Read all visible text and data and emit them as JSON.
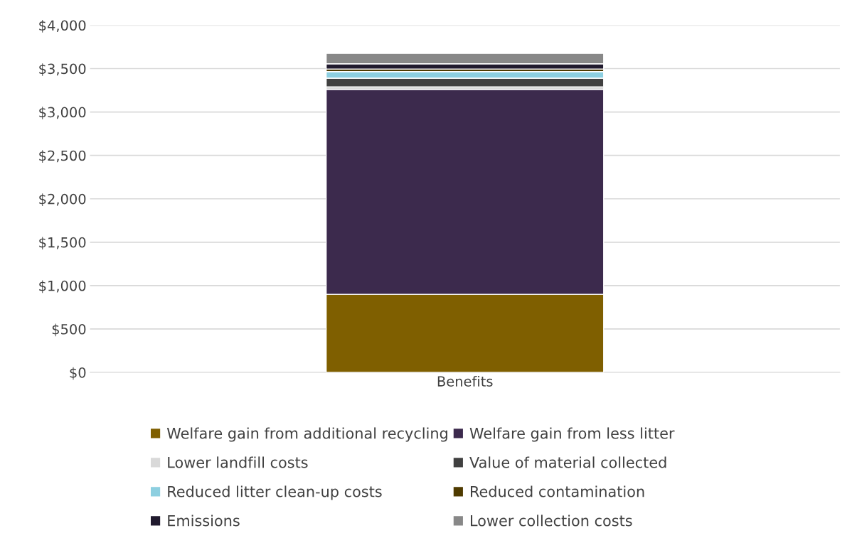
{
  "chart_data": {
    "type": "bar",
    "stacked": true,
    "categories": [
      "Benefits"
    ],
    "series": [
      {
        "name": "Welfare gain from additional recycling",
        "color": "#7f5f00",
        "values": [
          900
        ]
      },
      {
        "name": "Welfare gain from less litter",
        "color": "#3c2a4d",
        "values": [
          2360
        ]
      },
      {
        "name": "Lower landfill costs",
        "color": "#d9d9d9",
        "values": [
          30
        ]
      },
      {
        "name": "Value of material collected",
        "color": "#404040",
        "values": [
          100
        ]
      },
      {
        "name": "Reduced litter clean-up costs",
        "color": "#8dcfe0",
        "values": [
          75
        ]
      },
      {
        "name": "Reduced contamination",
        "color": "#4f3b00",
        "values": [
          30
        ]
      },
      {
        "name": "Emissions",
        "color": "#201a2e",
        "values": [
          60
        ]
      },
      {
        "name": "Lower collection costs",
        "color": "#888888",
        "values": [
          120
        ]
      }
    ],
    "ylim": [
      0,
      4000
    ],
    "yticks": [
      {
        "value": 0,
        "label": "$0"
      },
      {
        "value": 500,
        "label": "$500"
      },
      {
        "value": 1000,
        "label": "$1,000"
      },
      {
        "value": 1500,
        "label": "$1,500"
      },
      {
        "value": 2000,
        "label": "$2,000"
      },
      {
        "value": 2500,
        "label": "$2,500"
      },
      {
        "value": 3000,
        "label": "$3,000"
      },
      {
        "value": 3500,
        "label": "$3,500"
      },
      {
        "value": 4000,
        "label": "$4,000"
      }
    ],
    "grid": "y",
    "legend": "bottom"
  }
}
